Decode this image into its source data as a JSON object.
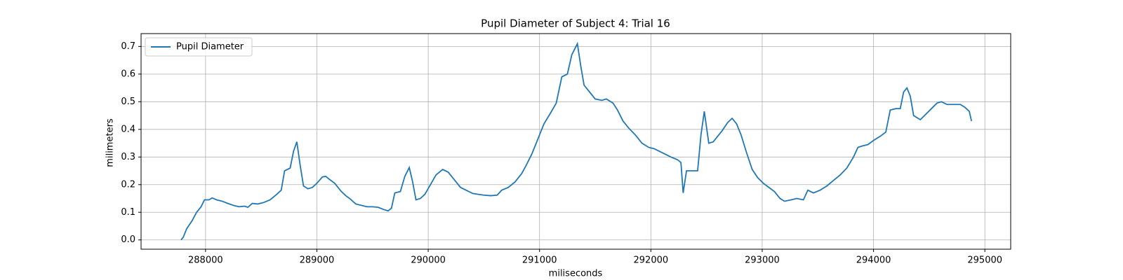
{
  "chart_data": {
    "type": "line",
    "title": "Pupil Diameter of Subject 4: Trial 16",
    "x_label": "miliseconds",
    "y_label": "milimeters",
    "legend": "upper left",
    "grid": true,
    "xlim": [
      287421,
      295232
    ],
    "xticks": [
      288000,
      289000,
      290000,
      291000,
      292000,
      293000,
      294000,
      295000
    ],
    "ylim": [
      -0.0336,
      0.7465
    ],
    "yticks": [
      {
        "value": 0,
        "label": "0.0"
      },
      0.1,
      0.2,
      0.3,
      0.4,
      0.5,
      0.6,
      0.7
    ],
    "series": [
      {
        "name": "Pupil Diameter",
        "color": "#1f77b4",
        "x": [
          287780,
          287800,
          287830,
          287880,
          287920,
          287960,
          287990,
          288030,
          288060,
          288100,
          288150,
          288200,
          288250,
          288300,
          288350,
          288380,
          288420,
          288470,
          288520,
          288580,
          288640,
          288680,
          288710,
          288760,
          288790,
          288820,
          288850,
          288880,
          288920,
          288960,
          289000,
          289050,
          289080,
          289110,
          289160,
          289220,
          289260,
          289300,
          289350,
          289400,
          289450,
          289500,
          289550,
          289600,
          289640,
          289670,
          289700,
          289750,
          289790,
          289830,
          289860,
          289890,
          289930,
          289970,
          290020,
          290070,
          290130,
          290180,
          290240,
          290290,
          290340,
          290400,
          290450,
          290500,
          290560,
          290620,
          290660,
          290720,
          290780,
          290840,
          290880,
          290930,
          290980,
          291040,
          291100,
          291150,
          291200,
          291250,
          291290,
          291340,
          291370,
          291400,
          291450,
          291500,
          291560,
          291600,
          291660,
          291700,
          291750,
          291800,
          291860,
          291920,
          291980,
          292030,
          292080,
          292130,
          292180,
          292240,
          292270,
          292290,
          292320,
          292380,
          292420,
          292450,
          292480,
          292520,
          292560,
          292600,
          292640,
          292690,
          292730,
          292770,
          292810,
          292860,
          292910,
          292960,
          293010,
          293060,
          293110,
          293160,
          293200,
          293260,
          293310,
          293370,
          293410,
          293460,
          293520,
          293580,
          293640,
          293700,
          293760,
          293820,
          293860,
          293900,
          293950,
          294000,
          294060,
          294110,
          294150,
          294200,
          294240,
          294270,
          294300,
          294330,
          294360,
          294420,
          294470,
          294520,
          294570,
          294610,
          294660,
          294720,
          294780,
          294820,
          294860,
          294880
        ],
        "values": [
          0.0,
          0.01,
          0.04,
          0.07,
          0.1,
          0.12,
          0.145,
          0.145,
          0.152,
          0.145,
          0.14,
          0.132,
          0.125,
          0.12,
          0.122,
          0.118,
          0.132,
          0.13,
          0.135,
          0.145,
          0.165,
          0.18,
          0.25,
          0.26,
          0.32,
          0.355,
          0.27,
          0.195,
          0.185,
          0.19,
          0.205,
          0.228,
          0.23,
          0.22,
          0.205,
          0.175,
          0.16,
          0.148,
          0.13,
          0.125,
          0.12,
          0.12,
          0.118,
          0.11,
          0.105,
          0.115,
          0.17,
          0.175,
          0.23,
          0.262,
          0.21,
          0.145,
          0.15,
          0.165,
          0.2,
          0.235,
          0.255,
          0.245,
          0.215,
          0.19,
          0.18,
          0.168,
          0.165,
          0.162,
          0.16,
          0.162,
          0.18,
          0.19,
          0.21,
          0.24,
          0.27,
          0.31,
          0.36,
          0.42,
          0.46,
          0.495,
          0.59,
          0.6,
          0.67,
          0.71,
          0.63,
          0.56,
          0.535,
          0.51,
          0.505,
          0.51,
          0.495,
          0.47,
          0.43,
          0.405,
          0.38,
          0.35,
          0.335,
          0.33,
          0.32,
          0.31,
          0.3,
          0.29,
          0.28,
          0.17,
          0.25,
          0.25,
          0.25,
          0.38,
          0.465,
          0.35,
          0.355,
          0.375,
          0.395,
          0.425,
          0.44,
          0.42,
          0.38,
          0.315,
          0.255,
          0.225,
          0.205,
          0.19,
          0.175,
          0.15,
          0.14,
          0.145,
          0.15,
          0.145,
          0.18,
          0.17,
          0.18,
          0.195,
          0.215,
          0.235,
          0.26,
          0.3,
          0.335,
          0.34,
          0.345,
          0.36,
          0.375,
          0.39,
          0.47,
          0.475,
          0.475,
          0.535,
          0.55,
          0.52,
          0.45,
          0.435,
          0.455,
          0.475,
          0.495,
          0.5,
          0.49,
          0.49,
          0.49,
          0.48,
          0.465,
          0.43
        ]
      }
    ]
  }
}
